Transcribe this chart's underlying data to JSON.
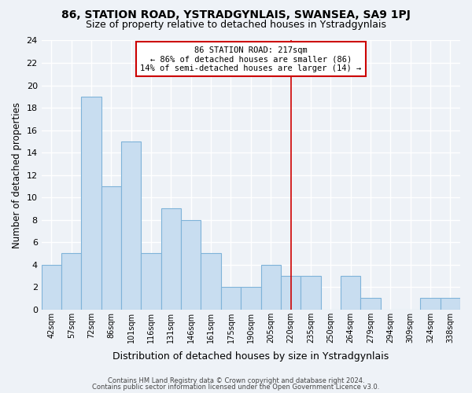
{
  "title1": "86, STATION ROAD, YSTRADGYNLAIS, SWANSEA, SA9 1PJ",
  "title2": "Size of property relative to detached houses in Ystradgynlais",
  "xlabel": "Distribution of detached houses by size in Ystradgynlais",
  "ylabel": "Number of detached properties",
  "categories": [
    "42sqm",
    "57sqm",
    "72sqm",
    "86sqm",
    "101sqm",
    "116sqm",
    "131sqm",
    "146sqm",
    "161sqm",
    "175sqm",
    "190sqm",
    "205sqm",
    "220sqm",
    "235sqm",
    "250sqm",
    "264sqm",
    "279sqm",
    "294sqm",
    "309sqm",
    "324sqm",
    "338sqm"
  ],
  "values": [
    4,
    5,
    19,
    11,
    15,
    5,
    9,
    8,
    5,
    2,
    2,
    4,
    3,
    3,
    0,
    3,
    1,
    0,
    0,
    1,
    1
  ],
  "bar_color": "#c8ddf0",
  "bar_edge_color": "#7fb3d9",
  "vline_x_index": 12,
  "vline_color": "#cc0000",
  "annotation_title": "86 STATION ROAD: 217sqm",
  "annotation_line1": "← 86% of detached houses are smaller (86)",
  "annotation_line2": "14% of semi-detached houses are larger (14) →",
  "annotation_box_color": "#ffffff",
  "annotation_box_edge": "#cc0000",
  "ylim": [
    0,
    24
  ],
  "yticks": [
    0,
    2,
    4,
    6,
    8,
    10,
    12,
    14,
    16,
    18,
    20,
    22,
    24
  ],
  "footnote1": "Contains HM Land Registry data © Crown copyright and database right 2024.",
  "footnote2": "Contains public sector information licensed under the Open Government Licence v3.0.",
  "background_color": "#eef2f7",
  "grid_color": "#ffffff",
  "title1_fontsize": 10,
  "title2_fontsize": 9,
  "xlabel_fontsize": 9,
  "ylabel_fontsize": 8.5
}
